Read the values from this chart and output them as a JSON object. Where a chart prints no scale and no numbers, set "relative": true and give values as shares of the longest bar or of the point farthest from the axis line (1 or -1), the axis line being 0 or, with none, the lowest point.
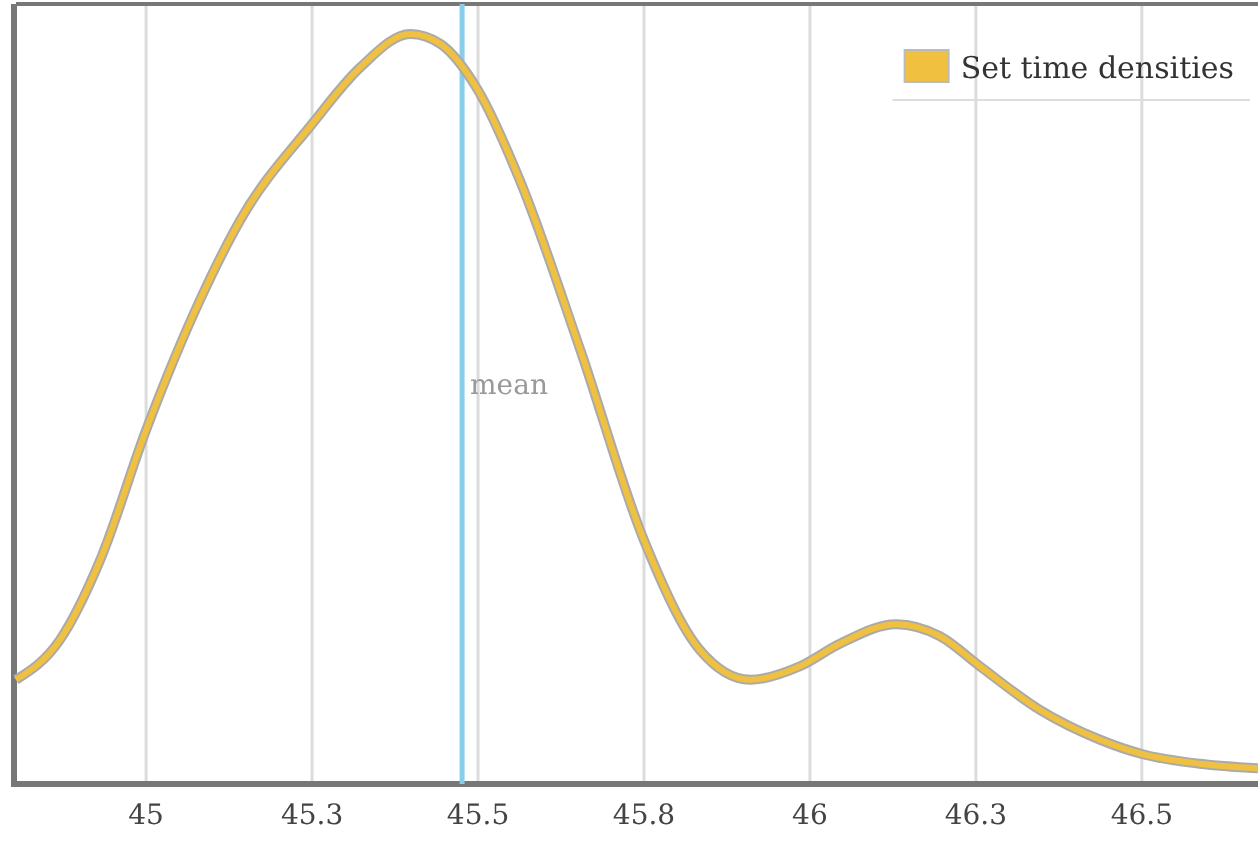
{
  "chart_data": {
    "type": "line",
    "relative": true,
    "x": [
      44.804,
      44.87,
      44.931,
      45.0,
      45.081,
      45.142,
      45.25,
      45.322,
      45.398,
      45.443,
      45.5,
      45.563,
      45.654,
      45.75,
      45.834,
      45.91,
      45.985,
      46.045,
      46.13,
      46.196,
      46.256,
      46.346,
      46.437,
      46.5,
      46.587,
      46.675
    ],
    "series": [
      {
        "name": "Set time densities",
        "color": "#f0c040",
        "values": [
          0.139,
          0.192,
          0.299,
          0.472,
          0.645,
          0.752,
          0.88,
          0.955,
          1,
          0.987,
          0.925,
          0.805,
          0.579,
          0.325,
          0.179,
          0.139,
          0.157,
          0.187,
          0.213,
          0.197,
          0.157,
          0.099,
          0.059,
          0.04,
          0.027,
          0.021
        ]
      }
    ],
    "xlim": [
      44.804,
      46.675
    ],
    "xticks": [
      45,
      {
        "value": 45.25,
        "label": "45.3"
      },
      45.5,
      {
        "value": 45.75,
        "label": "45.8"
      },
      46,
      {
        "value": 46.25,
        "label": "46.3"
      },
      46.5
    ],
    "ref_lines": [
      {
        "axis": "x",
        "value": 45.476,
        "label": "mean",
        "color": "#87ceeb"
      }
    ],
    "grid": "x",
    "legend": "top right"
  }
}
